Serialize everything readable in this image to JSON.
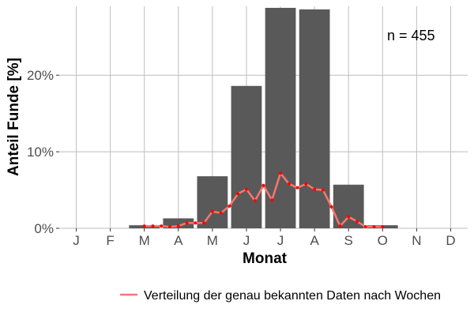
{
  "chart_data": {
    "type": "bar",
    "categories": [
      "J",
      "F",
      "M",
      "A",
      "M",
      "J",
      "J",
      "A",
      "S",
      "O",
      "N",
      "D"
    ],
    "values": [
      0,
      0,
      0.4,
      1.3,
      6.8,
      18.6,
      28.8,
      28.6,
      5.7,
      0.4,
      0,
      0
    ],
    "bar_color": "#595959",
    "xlabel": "Monat",
    "ylabel": "Anteil Funde [%]",
    "ylim": [
      0,
      29
    ],
    "yticks": [
      0,
      10,
      20
    ],
    "ytick_labels": [
      "0%",
      "10%",
      "20%"
    ],
    "grid": true,
    "annotation": "n = 455",
    "line_series": {
      "name": "Verteilung der genau bekannten Daten nach Wochen",
      "color": "#f8766d",
      "point_color": "#ff0000",
      "x": [
        2.0,
        2.25,
        2.5,
        2.75,
        3.0,
        3.25,
        3.5,
        3.75,
        4.0,
        4.25,
        4.5,
        4.75,
        5.0,
        5.25,
        5.5,
        5.75,
        6.0,
        6.25,
        6.5,
        6.75,
        7.0,
        7.25,
        7.5,
        7.75,
        8.0,
        8.25,
        8.5,
        8.75,
        9.0
      ],
      "y": [
        0.3,
        0.3,
        0.3,
        0.2,
        0.3,
        0.7,
        0.7,
        0.7,
        2.2,
        2.0,
        2.9,
        4.5,
        5.1,
        3.6,
        5.6,
        3.7,
        7.2,
        5.8,
        5.3,
        5.8,
        5.1,
        5.0,
        2.8,
        0.3,
        1.5,
        0.9,
        0.2,
        0.2,
        0.2
      ]
    },
    "legend": {
      "position": "bottom",
      "entries": [
        "Verteilung der genau bekannten Daten nach Wochen"
      ]
    }
  }
}
